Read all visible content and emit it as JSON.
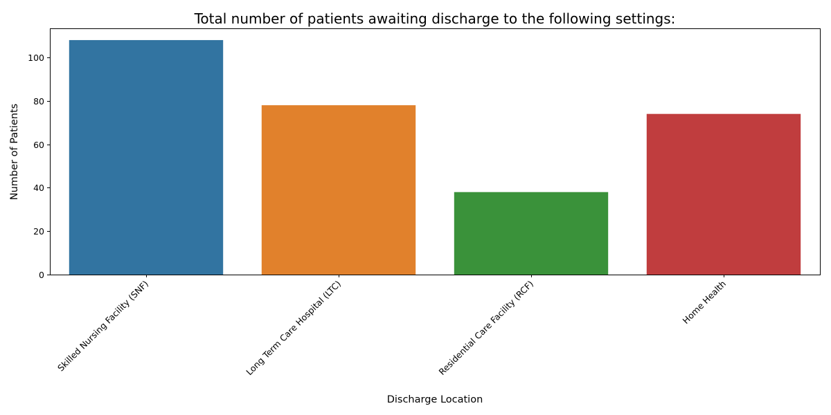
{
  "chart_data": {
    "type": "bar",
    "title": "Total number of patients awaiting discharge to the following settings:",
    "xlabel": "Discharge Location",
    "ylabel": "Number of Patients",
    "categories": [
      "Skilled Nursing Facility (SNF)",
      "Long Term Care Hospital (LTC)",
      "Residential Care Facility (RCF)",
      "Home Health"
    ],
    "values": [
      108,
      78,
      38,
      74
    ],
    "colors": [
      "#3274a1",
      "#e1812c",
      "#3a923a",
      "#c03d3e"
    ],
    "ylim": [
      0,
      113.4
    ],
    "yticks": [
      0,
      20,
      40,
      60,
      80,
      100
    ],
    "ytick_labels": [
      "0",
      "20",
      "40",
      "60",
      "80",
      "100"
    ],
    "grid": false,
    "legend": "none"
  }
}
